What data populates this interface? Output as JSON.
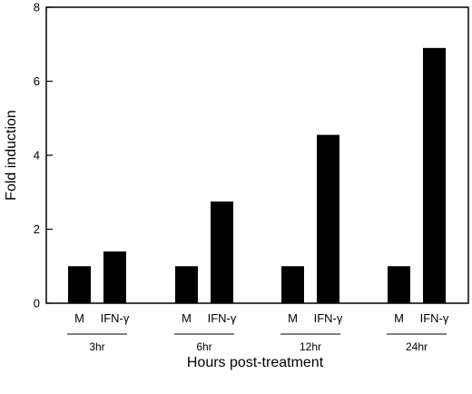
{
  "chart_data": {
    "type": "bar",
    "title": "",
    "xlabel": "Hours post-treatment",
    "ylabel": "Fold induction",
    "ylim": [
      0,
      8
    ],
    "yticks": [
      "0",
      "2",
      "4",
      "6",
      "8"
    ],
    "grid": false,
    "legend": "none",
    "bar_color": "#000000",
    "groups": [
      {
        "label": "3hr",
        "bars": [
          {
            "label": "M",
            "value": 1.0
          },
          {
            "label": "IFN-γ",
            "value": 1.4
          }
        ]
      },
      {
        "label": "6hr",
        "bars": [
          {
            "label": "M",
            "value": 1.0
          },
          {
            "label": "IFN-γ",
            "value": 2.75
          }
        ]
      },
      {
        "label": "12hr",
        "bars": [
          {
            "label": "M",
            "value": 1.0
          },
          {
            "label": "IFN-γ",
            "value": 4.55
          }
        ]
      },
      {
        "label": "24hr",
        "bars": [
          {
            "label": "M",
            "value": 1.0
          },
          {
            "label": "IFN-γ",
            "value": 6.9
          }
        ]
      }
    ]
  }
}
